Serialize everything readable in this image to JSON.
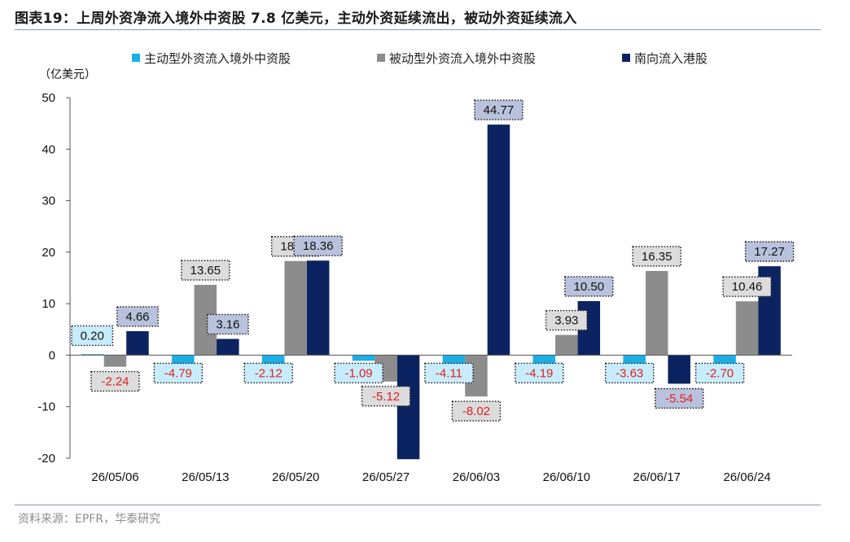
{
  "title": "图表19：上周外资净流入境外中资股 7.8 亿美元，主动外资延续流出，被动外资延续流入",
  "source": "资料来源：EPFR，华泰研究",
  "chart_data": {
    "type": "bar",
    "unit_label": "（亿美元）",
    "categories": [
      "26/05/06",
      "26/05/13",
      "26/05/20",
      "26/05/27",
      "26/06/03",
      "26/06/10",
      "26/06/17",
      "26/06/24"
    ],
    "series": [
      {
        "name": "主动型外资流入境外中资股",
        "color": "#1aafe6",
        "label_bg": "#c7ecfb",
        "values": [
          0.2,
          -4.79,
          -2.12,
          -1.09,
          -4.11,
          -4.19,
          -3.63,
          -2.7
        ]
      },
      {
        "name": "被动型外资流入境外中资股",
        "color": "#8c8c8c",
        "label_bg": "#dcdcdc",
        "values": [
          -2.24,
          13.65,
          18.28,
          -5.12,
          -8.02,
          3.93,
          16.35,
          10.46
        ]
      },
      {
        "name": "南向流入港股",
        "color": "#0b2461",
        "label_bg": "#b9c2dc",
        "values": [
          4.66,
          3.16,
          18.36,
          -20.2,
          44.77,
          10.5,
          -5.54,
          17.27
        ]
      }
    ],
    "data_labels": [
      [
        "0.20",
        "-2.24",
        "4.66"
      ],
      [
        "-4.79",
        "13.65",
        "3.16"
      ],
      [
        "-2.12",
        "18.28",
        "18.36"
      ],
      [
        "-1.09",
        "-5.12",
        ""
      ],
      [
        "-4.11",
        "-8.02",
        "44.77"
      ],
      [
        "-4.19",
        "3.93",
        "10.50"
      ],
      [
        "-3.63",
        "16.35",
        "-5.54"
      ],
      [
        "-2.70",
        "10.46",
        "17.27"
      ]
    ],
    "ylim": [
      -20,
      50
    ],
    "yticks": [
      -20,
      -10,
      0,
      10,
      20,
      30,
      40,
      50
    ],
    "negative_label_color": "#e02020",
    "legend_position": "top",
    "grid": false
  }
}
